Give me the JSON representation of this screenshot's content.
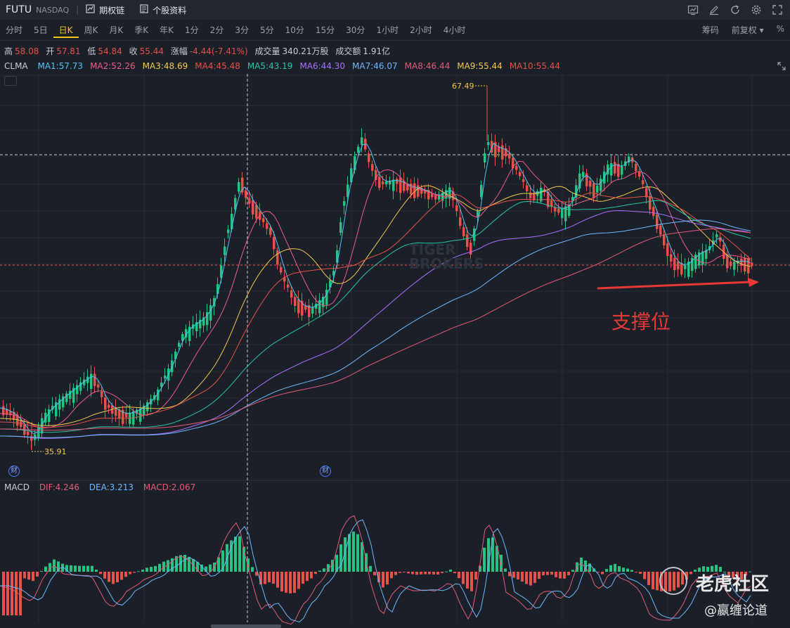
{
  "topbar": {
    "symbol": "FUTU",
    "exchange": "NASDAQ",
    "separator": "|",
    "options_chain": "期权链",
    "stock_profile": "个股资料",
    "icons": [
      "chart-icon",
      "draw-icon",
      "refresh-icon",
      "settings-icon",
      "fullscreen-icon"
    ]
  },
  "periods": [
    "分时",
    "5日",
    "日K",
    "周K",
    "月K",
    "季K",
    "年K",
    "1分",
    "2分",
    "3分",
    "5分",
    "10分",
    "15分",
    "30分",
    "1小时",
    "2小时",
    "4小时"
  ],
  "active_period": "日K",
  "period_right": {
    "chips": "筹码",
    "adjust": "前复权 ▾",
    "percent": "%"
  },
  "quote": {
    "high_label": "高",
    "high": "58.08",
    "open_label": "开",
    "open": "57.81",
    "low_label": "低",
    "low": "54.84",
    "close_label": "收",
    "close": "55.44",
    "change_label": "涨幅",
    "change": "-4.44(-7.41%)",
    "volume_label": "成交量",
    "volume": "340.21万股",
    "turnover_label": "成交额",
    "turnover": "1.91亿"
  },
  "ma": {
    "name": "CLMA",
    "items": [
      {
        "label": "MA1:57.73",
        "color": "#4fc3f7"
      },
      {
        "label": "MA2:52.26",
        "color": "#ef5b8a"
      },
      {
        "label": "MA3:48.69",
        "color": "#f2c94c"
      },
      {
        "label": "MA4:45.48",
        "color": "#e5524a"
      },
      {
        "label": "MA5:43.19",
        "color": "#26c6a6"
      },
      {
        "label": "MA6:44.30",
        "color": "#a970ff"
      },
      {
        "label": "MA7:46.07",
        "color": "#6fb8ff"
      },
      {
        "label": "MA8:46.44",
        "color": "#e25b7a"
      },
      {
        "label": "MA9:55.44",
        "color": "#f2c94c"
      },
      {
        "label": "MA10:55.44",
        "color": "#e5524a"
      }
    ]
  },
  "macd": {
    "name": "MACD",
    "dif": {
      "label": "DIF:4.246",
      "color": "#e25b7a"
    },
    "dea": {
      "label": "DEA:3.213",
      "color": "#6fb8ff"
    },
    "macd": {
      "label": "MACD:2.067",
      "color": "#e25b7a"
    }
  },
  "chart_marks": {
    "high_mark": "67.49",
    "low_mark": "35.91"
  },
  "badges": {
    "earnings": "财"
  },
  "annotation": "支撑位",
  "watermarks": {
    "tiger_top": "TIGER",
    "tiger_bottom": "BROKERS",
    "community": "老虎社区",
    "author": "@嬴缠论道"
  },
  "colors": {
    "up": "#26c281",
    "down": "#e5524a",
    "accent": "#f0c419",
    "annotation": "#e53935"
  }
}
